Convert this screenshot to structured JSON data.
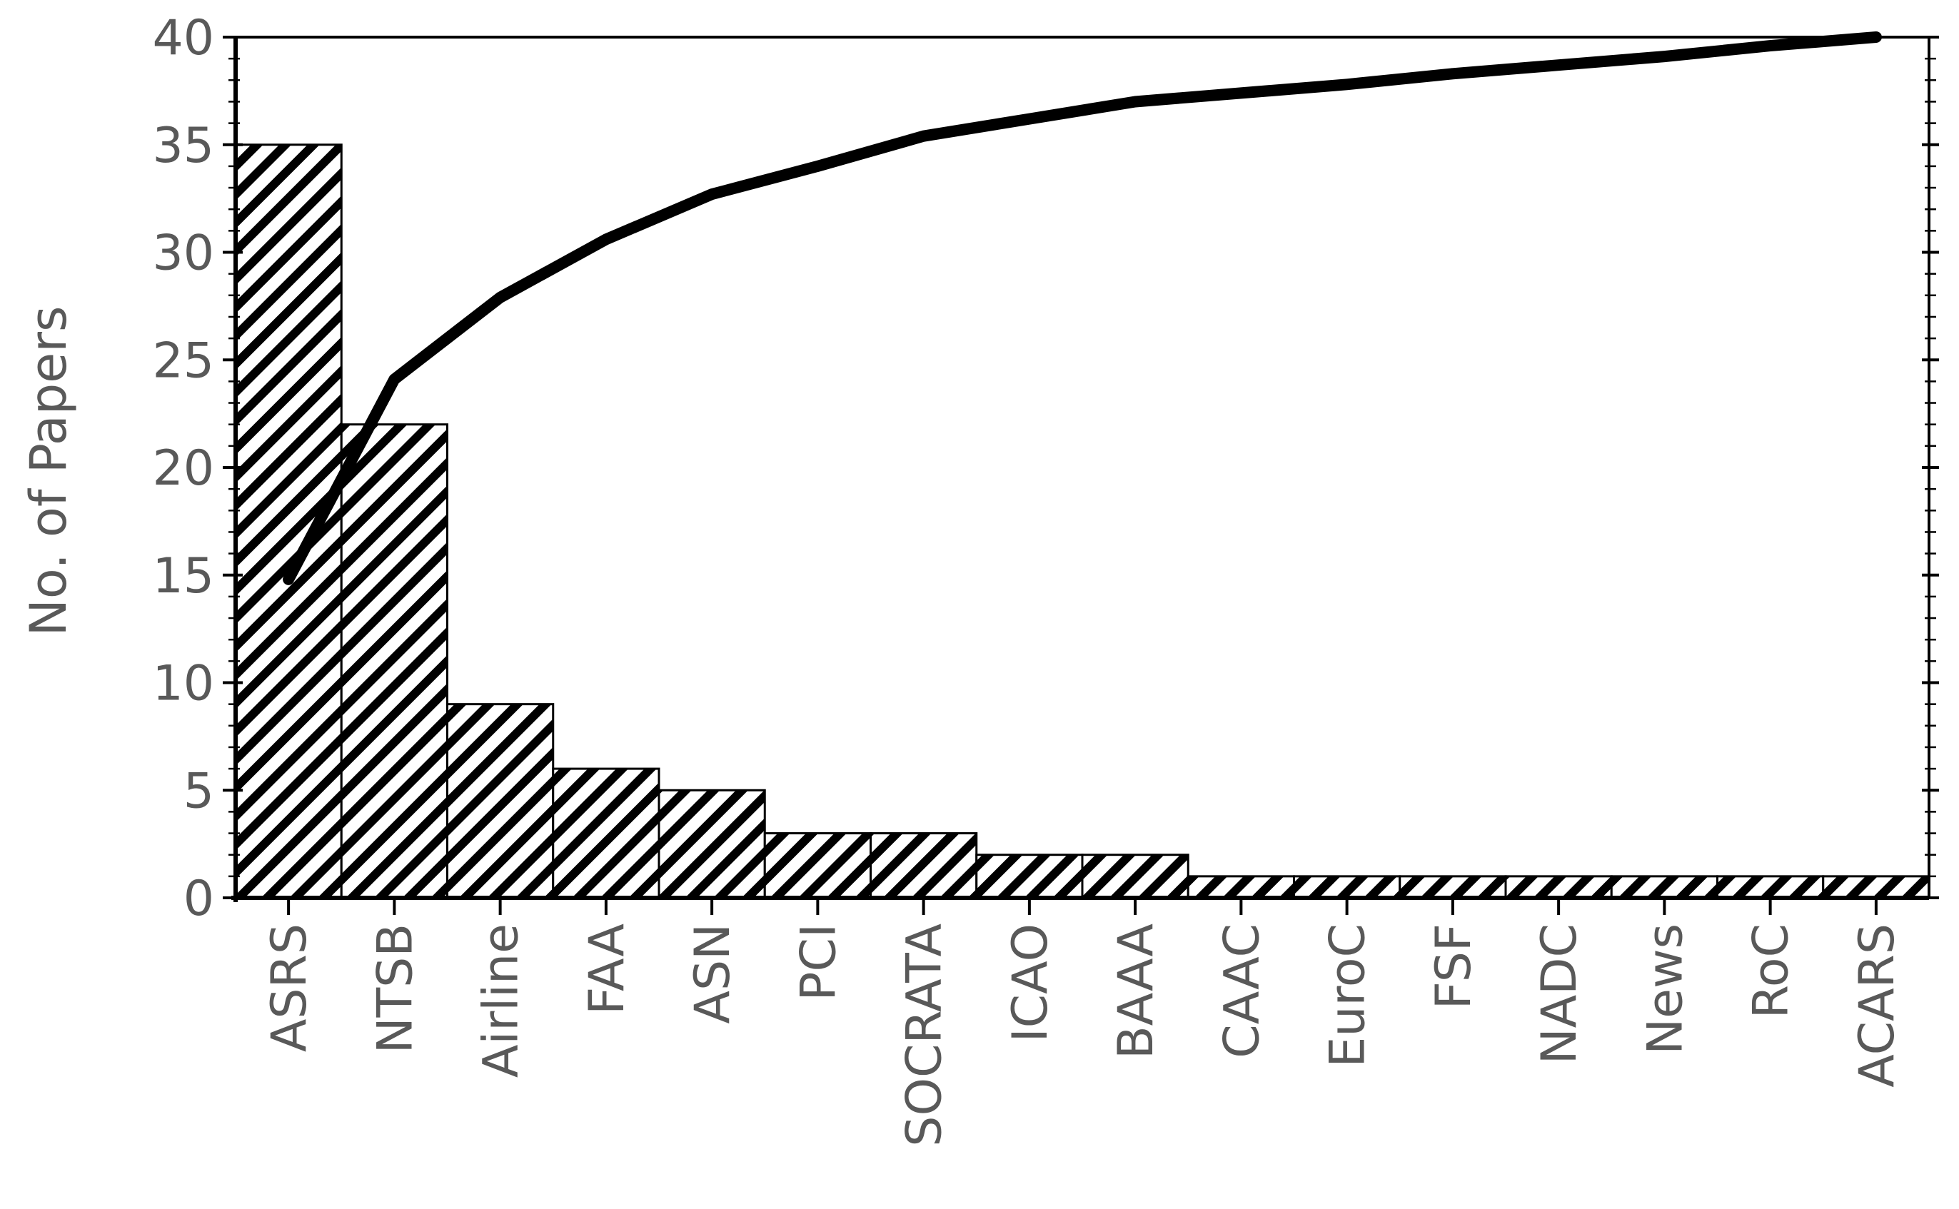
{
  "chart_data": {
    "type": "bar",
    "title": "",
    "xlabel": "",
    "ylabel": "No. of Papers",
    "ylim": [
      0,
      40
    ],
    "yticks": [
      0,
      5,
      10,
      15,
      20,
      25,
      30,
      35,
      40
    ],
    "grid": false,
    "legend": "none",
    "bar_fill": "diagonal-hatch",
    "colors": {
      "bar_outline": "#000000",
      "hatch": "#000000",
      "bar_background": "#ffffff",
      "line": "#000000",
      "tick_text": "#595959"
    },
    "categories": [
      "ASRS",
      "NTSB",
      "Airline",
      "FAA",
      "ASN",
      "PCI",
      "SOCRATA",
      "ICAO",
      "BAAA",
      "CAAC",
      "EuroC",
      "FSF",
      "NADC",
      "News",
      "RoC",
      "ACARS"
    ],
    "series": [
      {
        "type": "bar",
        "values": [
          35,
          22,
          9,
          6,
          5,
          3,
          3,
          2,
          2,
          1,
          1,
          1,
          1,
          1,
          1,
          1
        ]
      },
      {
        "type": "line",
        "values": [
          14.8,
          24.1,
          27.9,
          30.6,
          32.7,
          34.0,
          35.4,
          36.2,
          37.0,
          37.4,
          37.8,
          38.3,
          38.7,
          39.1,
          39.6,
          40.0
        ]
      }
    ]
  }
}
